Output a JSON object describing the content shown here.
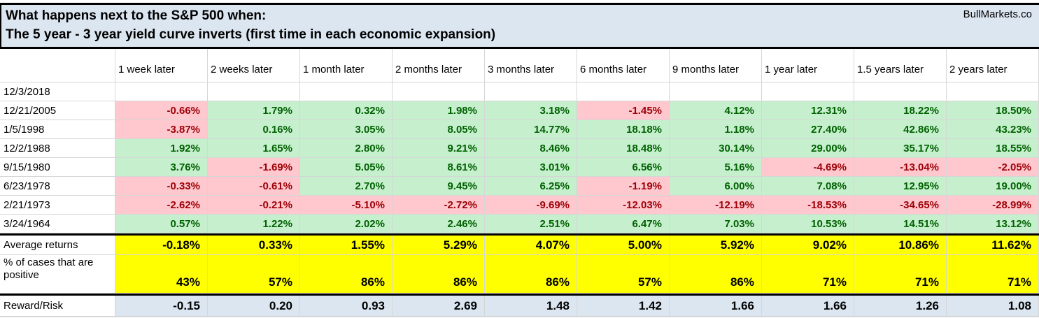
{
  "title": {
    "line1": "What happens next to the S&P 500 when:",
    "line2": "The 5 year - 3 year yield curve inverts (first time in each economic expansion)",
    "brand": "BullMarkets.co"
  },
  "colors": {
    "positive_fill": "#c6efce",
    "positive_text": "#006100",
    "negative_fill": "#ffc7ce",
    "negative_text": "#9c0006",
    "highlight_yellow": "#ffff00",
    "band_blue": "#dce6f1",
    "reward_fill": "#dce6f1"
  },
  "table": {
    "col_headers": [
      "1 week later",
      "2 weeks later",
      "1 month later",
      "2 months later",
      "3 months later",
      "6 months later",
      "9 months later",
      "1 year later",
      "1.5 years later",
      "2 years later"
    ],
    "rows": [
      {
        "date": "12/3/2018",
        "values": []
      },
      {
        "date": "12/21/2005",
        "values": [
          "-0.66%",
          "1.79%",
          "0.32%",
          "1.98%",
          "3.18%",
          "-1.45%",
          "4.12%",
          "12.31%",
          "18.22%",
          "18.50%"
        ]
      },
      {
        "date": "1/5/1998",
        "values": [
          "-3.87%",
          "0.16%",
          "3.05%",
          "8.05%",
          "14.77%",
          "18.18%",
          "1.18%",
          "27.40%",
          "42.86%",
          "43.23%"
        ]
      },
      {
        "date": "12/2/1988",
        "values": [
          "1.92%",
          "1.65%",
          "2.80%",
          "9.21%",
          "8.46%",
          "18.48%",
          "30.14%",
          "29.00%",
          "35.17%",
          "18.55%"
        ]
      },
      {
        "date": "9/15/1980",
        "values": [
          "3.76%",
          "-1.69%",
          "5.05%",
          "8.61%",
          "3.01%",
          "6.56%",
          "5.16%",
          "-4.69%",
          "-13.04%",
          "-2.05%"
        ]
      },
      {
        "date": "6/23/1978",
        "values": [
          "-0.33%",
          "-0.61%",
          "2.70%",
          "9.45%",
          "6.25%",
          "-1.19%",
          "6.00%",
          "7.08%",
          "12.95%",
          "19.00%"
        ]
      },
      {
        "date": "2/21/1973",
        "values": [
          "-2.62%",
          "-0.21%",
          "-5.10%",
          "-2.72%",
          "-9.69%",
          "-12.03%",
          "-12.19%",
          "-18.53%",
          "-34.65%",
          "-28.99%"
        ]
      },
      {
        "date": "3/24/1964",
        "values": [
          "0.57%",
          "1.22%",
          "2.02%",
          "2.46%",
          "2.51%",
          "6.47%",
          "7.03%",
          "10.53%",
          "14.51%",
          "13.12%"
        ]
      }
    ],
    "summary": {
      "average": {
        "label": "Average returns",
        "values": [
          "-0.18%",
          "0.33%",
          "1.55%",
          "5.29%",
          "4.07%",
          "5.00%",
          "5.92%",
          "9.02%",
          "10.86%",
          "11.62%"
        ]
      },
      "pct_positive": {
        "label": "% of cases that are positive",
        "values": [
          "43%",
          "57%",
          "86%",
          "86%",
          "86%",
          "57%",
          "86%",
          "71%",
          "71%",
          "71%"
        ]
      },
      "reward_risk": {
        "label": "Reward/Risk",
        "values": [
          "-0.15",
          "0.20",
          "0.93",
          "2.69",
          "1.48",
          "1.42",
          "1.66",
          "1.66",
          "1.26",
          "1.08"
        ]
      }
    }
  },
  "chart_data": {
    "type": "table",
    "title": "What happens next to the S&P 500 when: The 5 year - 3 year yield curve inverts (first time in each economic expansion)",
    "columns": [
      "1 week later",
      "2 weeks later",
      "1 month later",
      "2 months later",
      "3 months later",
      "6 months later",
      "9 months later",
      "1 year later",
      "1.5 years later",
      "2 years later"
    ],
    "series": [
      {
        "name": "12/3/2018",
        "values": []
      },
      {
        "name": "12/21/2005",
        "values": [
          -0.66,
          1.79,
          0.32,
          1.98,
          3.18,
          -1.45,
          4.12,
          12.31,
          18.22,
          18.5
        ]
      },
      {
        "name": "1/5/1998",
        "values": [
          -3.87,
          0.16,
          3.05,
          8.05,
          14.77,
          18.18,
          1.18,
          27.4,
          42.86,
          43.23
        ]
      },
      {
        "name": "12/2/1988",
        "values": [
          1.92,
          1.65,
          2.8,
          9.21,
          8.46,
          18.48,
          30.14,
          29.0,
          35.17,
          18.55
        ]
      },
      {
        "name": "9/15/1980",
        "values": [
          3.76,
          -1.69,
          5.05,
          8.61,
          3.01,
          6.56,
          5.16,
          -4.69,
          -13.04,
          -2.05
        ]
      },
      {
        "name": "6/23/1978",
        "values": [
          -0.33,
          -0.61,
          2.7,
          9.45,
          6.25,
          -1.19,
          6.0,
          7.08,
          12.95,
          19.0
        ]
      },
      {
        "name": "2/21/1973",
        "values": [
          -2.62,
          -0.21,
          -5.1,
          -2.72,
          -9.69,
          -12.03,
          -12.19,
          -18.53,
          -34.65,
          -28.99
        ]
      },
      {
        "name": "3/24/1964",
        "values": [
          0.57,
          1.22,
          2.02,
          2.46,
          2.51,
          6.47,
          7.03,
          10.53,
          14.51,
          13.12
        ]
      },
      {
        "name": "Average returns",
        "values": [
          -0.18,
          0.33,
          1.55,
          5.29,
          4.07,
          5.0,
          5.92,
          9.02,
          10.86,
          11.62
        ]
      },
      {
        "name": "% of cases that are positive",
        "values": [
          43,
          57,
          86,
          86,
          86,
          57,
          86,
          71,
          71,
          71
        ]
      },
      {
        "name": "Reward/Risk",
        "values": [
          -0.15,
          0.2,
          0.93,
          2.69,
          1.48,
          1.42,
          1.66,
          1.66,
          1.26,
          1.08
        ]
      }
    ],
    "value_unit": "% (Reward/Risk row is a ratio)"
  }
}
